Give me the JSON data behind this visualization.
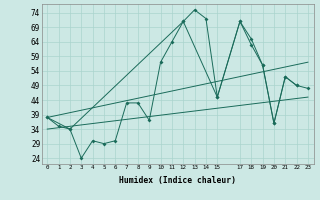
{
  "background_color": "#cce8e4",
  "grid_color": "#aad4ce",
  "line_color": "#1a6b5a",
  "xlabel": "Humidex (Indice chaleur)",
  "yticks": [
    24,
    29,
    34,
    39,
    44,
    49,
    54,
    59,
    64,
    69,
    74
  ],
  "xtick_vals": [
    0,
    1,
    2,
    3,
    4,
    5,
    6,
    7,
    8,
    9,
    10,
    11,
    12,
    13,
    14,
    15,
    17,
    18,
    19,
    20,
    21,
    22,
    23
  ],
  "xtick_labels": [
    "0",
    "1",
    "2",
    "3",
    "4",
    "5",
    "6",
    "7",
    "8",
    "9",
    "10",
    "11",
    "12",
    "13",
    "14",
    "15",
    "17",
    "18",
    "19",
    "20",
    "21",
    "22",
    "23"
  ],
  "ylim": [
    22,
    77
  ],
  "xlim": [
    -0.5,
    23.5
  ],
  "line1_x": [
    0,
    1,
    2,
    3,
    4,
    5,
    6,
    7,
    8,
    9,
    10,
    11,
    12,
    13,
    14,
    15,
    17,
    18,
    19,
    20,
    21,
    22
  ],
  "line1_y": [
    38,
    35,
    34,
    24,
    30,
    29,
    30,
    43,
    43,
    37,
    57,
    64,
    71,
    75,
    72,
    45,
    71,
    63,
    56,
    36,
    52,
    49
  ],
  "line2_x": [
    0,
    2,
    12,
    15,
    17,
    18,
    19,
    20,
    21,
    22,
    23
  ],
  "line2_y": [
    38,
    34,
    71,
    45,
    71,
    65,
    56,
    36,
    52,
    49,
    48
  ],
  "trend1_x": [
    0,
    23
  ],
  "trend1_y": [
    38,
    57
  ],
  "trend2_x": [
    0,
    23
  ],
  "trend2_y": [
    34,
    45
  ]
}
